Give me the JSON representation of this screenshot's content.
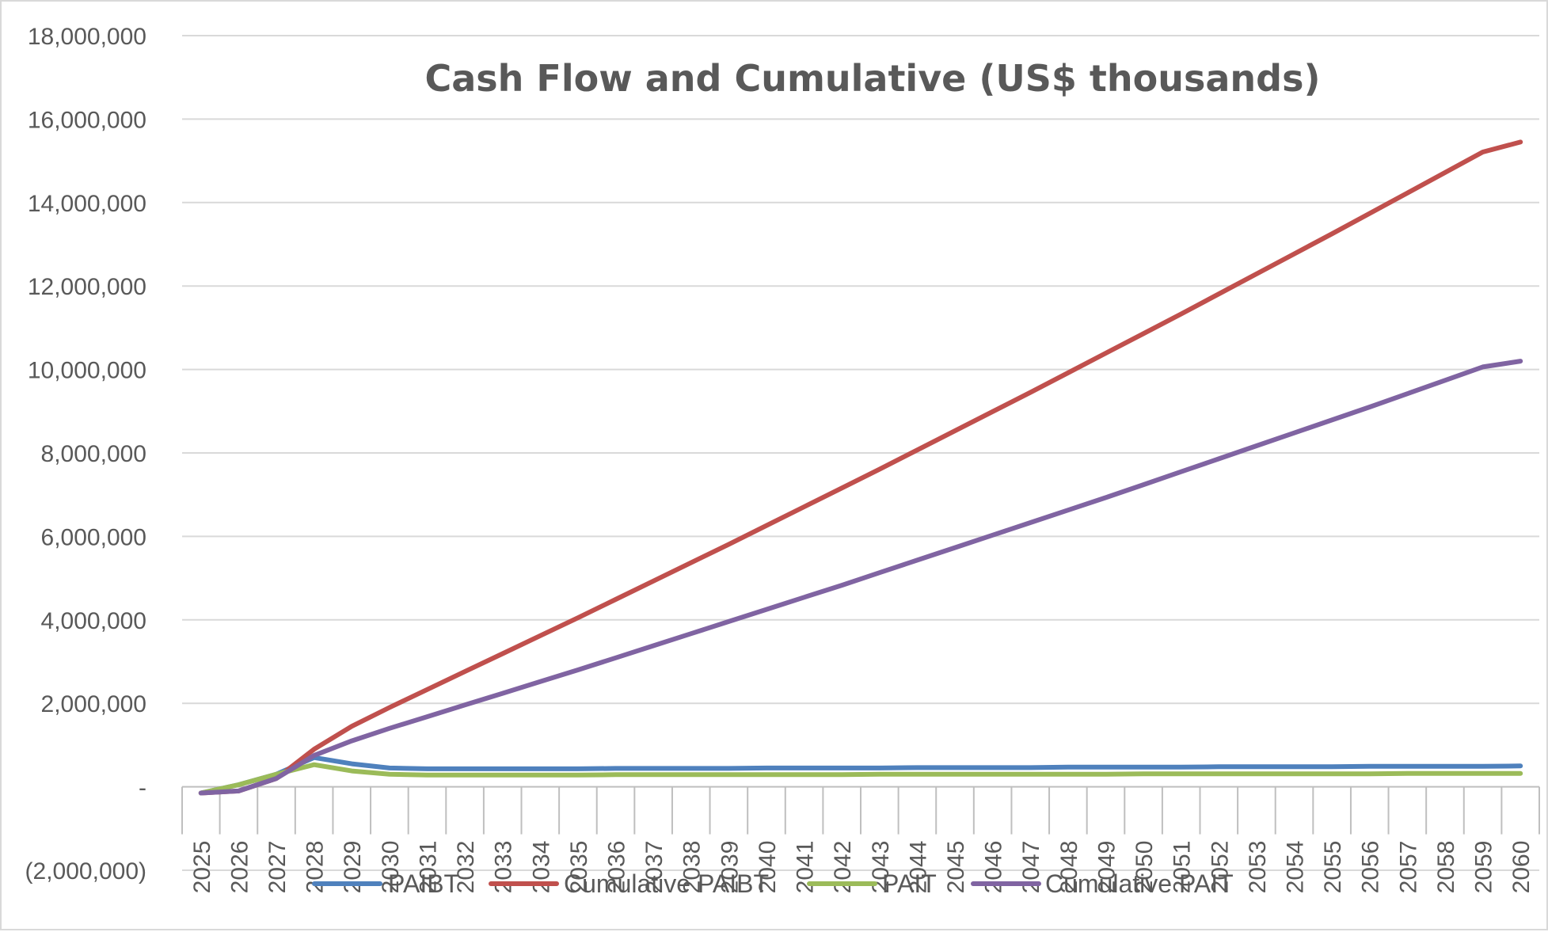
{
  "chart_data": {
    "type": "line",
    "title": "Cash Flow and Cumulative (US$ thousands)",
    "xlabel": "",
    "ylabel": "",
    "ylim": [
      -2000000,
      18000000
    ],
    "y_ticks": [
      -2000000,
      0,
      2000000,
      4000000,
      6000000,
      8000000,
      10000000,
      12000000,
      14000000,
      16000000,
      18000000
    ],
    "y_tick_labels": [
      "(2,000,000)",
      "-",
      "2,000,000",
      "4,000,000",
      "6,000,000",
      "8,000,000",
      "10,000,000",
      "12,000,000",
      "14,000,000",
      "16,000,000",
      "18,000,000"
    ],
    "grid": true,
    "legend_position": "bottom",
    "categories": [
      "2025",
      "2026",
      "2027",
      "2028",
      "2029",
      "2030",
      "2031",
      "2032",
      "2033",
      "2034",
      "2035",
      "2036",
      "2037",
      "2038",
      "2039",
      "2040",
      "2041",
      "2042",
      "2043",
      "2044",
      "2045",
      "2046",
      "2047",
      "2048",
      "2049",
      "2050",
      "2051",
      "2052",
      "2053",
      "2054",
      "2055",
      "2056",
      "2057",
      "2058",
      "2059",
      "2060"
    ],
    "series": [
      {
        "name": "PAIBT",
        "color": "#4f81bd",
        "values": [
          -150000,
          50000,
          300000,
          700000,
          550000,
          450000,
          430000,
          430000,
          430000,
          430000,
          430000,
          440000,
          440000,
          440000,
          440000,
          450000,
          450000,
          450000,
          450000,
          460000,
          460000,
          460000,
          460000,
          470000,
          470000,
          470000,
          470000,
          480000,
          480000,
          480000,
          480000,
          490000,
          490000,
          490000,
          490000,
          500000
        ]
      },
      {
        "name": "Cumulative PAIBT",
        "color": "#c0504d",
        "values": [
          -150000,
          -100000,
          200000,
          900000,
          1450000,
          1900000,
          2330000,
          2760000,
          3190000,
          3620000,
          4050000,
          4490000,
          4930000,
          5370000,
          5810000,
          6260000,
          6710000,
          7160000,
          7610000,
          8070000,
          8530000,
          8990000,
          9450000,
          9920000,
          10390000,
          10860000,
          11330000,
          11810000,
          12290000,
          12770000,
          13250000,
          13740000,
          14230000,
          14720000,
          15210000,
          15450000
        ]
      },
      {
        "name": "PAIT",
        "color": "#9bbb59",
        "values": [
          -150000,
          50000,
          300000,
          530000,
          380000,
          300000,
          280000,
          280000,
          280000,
          280000,
          280000,
          290000,
          290000,
          290000,
          290000,
          290000,
          290000,
          290000,
          300000,
          300000,
          300000,
          300000,
          300000,
          300000,
          300000,
          310000,
          310000,
          310000,
          310000,
          310000,
          310000,
          310000,
          320000,
          320000,
          320000,
          320000
        ]
      },
      {
        "name": "Cumulative PAIT",
        "color": "#8064a2",
        "values": [
          -150000,
          -100000,
          200000,
          750000,
          1100000,
          1400000,
          1680000,
          1960000,
          2240000,
          2520000,
          2800000,
          3090000,
          3380000,
          3670000,
          3960000,
          4250000,
          4540000,
          4830000,
          5130000,
          5430000,
          5730000,
          6030000,
          6330000,
          6630000,
          6930000,
          7240000,
          7550000,
          7860000,
          8170000,
          8480000,
          8790000,
          9100000,
          9420000,
          9740000,
          10060000,
          10200000
        ]
      }
    ]
  }
}
